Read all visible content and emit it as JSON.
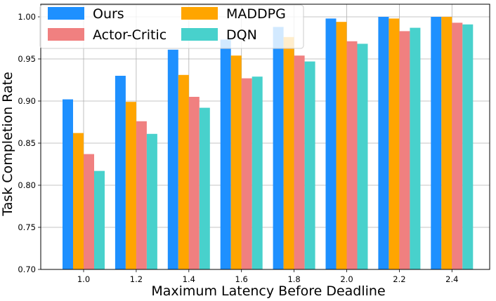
{
  "chart_data": {
    "type": "bar",
    "title": "",
    "xlabel": "Maximum Latency Before Deadline",
    "ylabel": "Task Completion Rate",
    "ylim": [
      0.7,
      1.015
    ],
    "yticks": [
      "0.70",
      "0.75",
      "0.80",
      "0.85",
      "0.90",
      "0.95",
      "1.00"
    ],
    "grid": true,
    "legend_position": "top-left",
    "categories": [
      "1.0",
      "1.2",
      "1.4",
      "1.6",
      "1.8",
      "2.0",
      "2.2",
      "2.4"
    ],
    "series": [
      {
        "name": "Ours",
        "color": "#1e90ff",
        "values": [
          0.902,
          0.93,
          0.961,
          0.973,
          0.988,
          0.998,
          1.0,
          1.0
        ]
      },
      {
        "name": "MADDPG",
        "color": "#ffa500",
        "values": [
          0.862,
          0.899,
          0.931,
          0.954,
          0.976,
          0.994,
          0.998,
          1.0
        ]
      },
      {
        "name": "Actor-Critic",
        "color": "#f08080",
        "values": [
          0.837,
          0.876,
          0.905,
          0.927,
          0.954,
          0.971,
          0.983,
          0.993
        ]
      },
      {
        "name": "DQN",
        "color": "#48d1cc",
        "values": [
          0.817,
          0.861,
          0.892,
          0.929,
          0.947,
          0.968,
          0.987,
          0.991
        ]
      }
    ]
  }
}
